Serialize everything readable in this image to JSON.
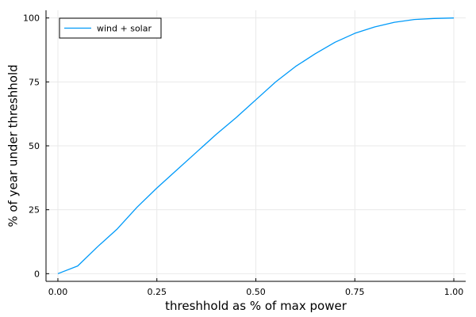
{
  "chart_data": {
    "type": "line",
    "title": "",
    "xlabel": "threshhold as % of max power",
    "ylabel": "% of year under threshhold",
    "xlim": [
      -0.03,
      1.03
    ],
    "ylim": [
      -3,
      103
    ],
    "x_ticks": [
      0.0,
      0.25,
      0.5,
      0.75,
      1.0
    ],
    "x_tick_labels": [
      "0.00",
      "0.25",
      "0.50",
      "0.75",
      "1.00"
    ],
    "y_ticks": [
      0,
      25,
      50,
      75,
      100
    ],
    "y_tick_labels": [
      "0",
      "25",
      "50",
      "75",
      "100"
    ],
    "grid": true,
    "legend": "top-left",
    "series": [
      {
        "name": "wind + solar",
        "color": "#009af9",
        "x": [
          0.0,
          0.05,
          0.1,
          0.15,
          0.2,
          0.25,
          0.3,
          0.35,
          0.4,
          0.45,
          0.5,
          0.55,
          0.6,
          0.65,
          0.7,
          0.75,
          0.8,
          0.85,
          0.9,
          0.95,
          1.0
        ],
        "y": [
          0,
          3,
          10.5,
          17.5,
          26,
          33.5,
          40.5,
          47.5,
          54.5,
          61,
          68,
          75,
          81,
          86,
          90.5,
          94,
          96.5,
          98.3,
          99.4,
          99.8,
          100
        ]
      }
    ]
  }
}
